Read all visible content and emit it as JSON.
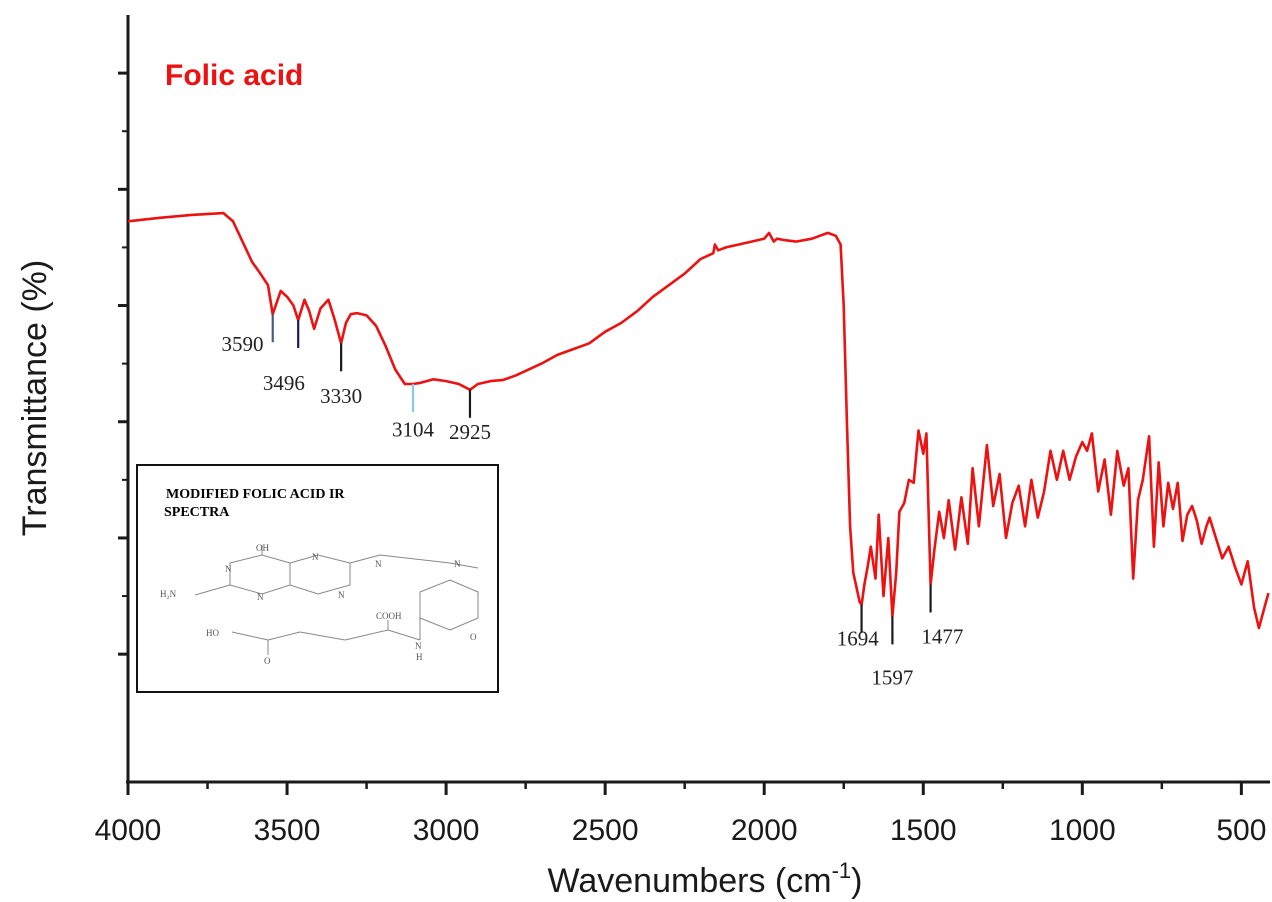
{
  "chart_data": {
    "type": "line",
    "title": "Folic acid",
    "xlabel": "Wavenumbers",
    "xlabel_unit": "(cm",
    "xlabel_unit_exp": "-1",
    "xlabel_unit_close": ")",
    "ylabel": "Transmittance (%)",
    "xlim": [
      4000,
      410
    ],
    "x_reversed": true,
    "x_ticks": [
      "4000",
      "3500",
      "3000",
      "2500",
      "2000",
      "1500",
      "1000",
      "500"
    ],
    "x_tick_values": [
      4000,
      3500,
      3000,
      2500,
      2000,
      1500,
      1000,
      500
    ],
    "y_tick_labels_shown": false,
    "grid": false,
    "colors": {
      "series": "#ee1111",
      "axis": "#1a1a1a"
    },
    "series": [
      {
        "x": [
          4000,
          3900,
          3800,
          3700,
          3670,
          3640,
          3610,
          3590,
          3560,
          3545,
          3520,
          3500,
          3480,
          3465,
          3445,
          3430,
          3415,
          3395,
          3370,
          3350,
          3330,
          3315,
          3300,
          3280,
          3250,
          3220,
          3190,
          3160,
          3130,
          3104,
          3080,
          3040,
          3000,
          2960,
          2925,
          2900,
          2860,
          2820,
          2780,
          2740,
          2700,
          2650,
          2600,
          2550,
          2500,
          2450,
          2400,
          2350,
          2300,
          2250,
          2200,
          2160,
          2155,
          2145,
          2120,
          2080,
          2040,
          2000,
          1985,
          1970,
          1960,
          1940,
          1900,
          1850,
          1800,
          1775,
          1760,
          1750,
          1740,
          1730,
          1720,
          1710,
          1700,
          1694,
          1685,
          1675,
          1665,
          1650,
          1640,
          1625,
          1610,
          1597,
          1585,
          1575,
          1560,
          1545,
          1530,
          1515,
          1500,
          1490,
          1477,
          1465,
          1450,
          1435,
          1420,
          1400,
          1380,
          1360,
          1345,
          1325,
          1300,
          1280,
          1260,
          1240,
          1220,
          1200,
          1180,
          1160,
          1140,
          1120,
          1100,
          1080,
          1060,
          1040,
          1020,
          1000,
          985,
          970,
          950,
          930,
          910,
          890,
          870,
          855,
          840,
          825,
          810,
          790,
          775,
          760,
          745,
          730,
          715,
          700,
          685,
          670,
          655,
          640,
          625,
          610,
          600,
          580,
          560,
          540,
          520,
          500,
          480,
          460,
          445,
          430,
          415
        ],
        "y": [
          74.5,
          75.1,
          75.6,
          75.9,
          74.5,
          71.0,
          67.5,
          66.0,
          63.5,
          58.5,
          62.5,
          61.5,
          60.0,
          57.5,
          61.0,
          59.0,
          56.0,
          59.5,
          61.0,
          57.5,
          53.5,
          57.0,
          58.5,
          58.7,
          58.3,
          56.5,
          53.0,
          49.0,
          46.5,
          46.5,
          46.7,
          47.3,
          47.0,
          46.5,
          45.5,
          46.5,
          47.0,
          47.2,
          48.0,
          49.0,
          50.0,
          51.5,
          52.5,
          53.5,
          55.5,
          57.0,
          59.0,
          61.5,
          63.5,
          65.5,
          68.0,
          69.0,
          70.5,
          69.5,
          70.0,
          70.5,
          71.0,
          71.5,
          72.5,
          71.0,
          71.5,
          71.3,
          71.0,
          71.5,
          72.5,
          72.0,
          70.5,
          60.0,
          40.0,
          22.0,
          14.0,
          11.5,
          9.0,
          8.5,
          12.0,
          15.0,
          18.5,
          13.0,
          24.0,
          10.0,
          20.0,
          6.5,
          14.0,
          24.5,
          26.0,
          30.0,
          29.5,
          38.5,
          34.5,
          38.0,
          12.0,
          18.0,
          24.5,
          20.0,
          26.5,
          18.0,
          27.0,
          19.0,
          32.0,
          22.0,
          36.0,
          25.5,
          31.0,
          20.0,
          26.0,
          29.0,
          22.0,
          30.0,
          23.5,
          28.0,
          35.0,
          30.0,
          35.0,
          30.0,
          34.0,
          36.5,
          35.0,
          38.0,
          28.0,
          33.5,
          24.0,
          35.0,
          29.0,
          32.0,
          13.0,
          26.5,
          30.0,
          37.5,
          18.5,
          33.0,
          22.0,
          29.5,
          25.0,
          29.5,
          19.5,
          24.0,
          25.5,
          23.0,
          19.0,
          22.0,
          23.5,
          20.0,
          16.5,
          18.5,
          15.0,
          12.0,
          16.0,
          8.0,
          4.5,
          7.5,
          10.5
        ]
      }
    ],
    "annotations": [
      {
        "label": "3590",
        "x": 3545,
        "x1": 3590,
        "y": 58.5,
        "color": "#4a5a7a",
        "text_x": 3640,
        "text_y": 52.2
      },
      {
        "label": "3496",
        "x": 3465,
        "x1": 3496,
        "y": 57.5,
        "color": "#1a1a60",
        "text_x": 3510,
        "text_y": 45.5
      },
      {
        "label": "3330",
        "x": 3330,
        "x1": 3330,
        "y": 53.5,
        "color": "#1a1a1a",
        "text_x": 3330,
        "text_y": 43.2
      },
      {
        "label": "3104",
        "x": 3104,
        "x1": 3104,
        "y": 46.5,
        "color": "#88c8e8",
        "text_x": 3104,
        "text_y": 37.5
      },
      {
        "label": "2925",
        "x": 2925,
        "x1": 2925,
        "y": 45.5,
        "color": "#1a1a1a",
        "text_x": 2925,
        "text_y": 37.0
      },
      {
        "label": "1694",
        "x": 1694,
        "x1": 1694,
        "y": 8.5,
        "color": "#1a1a1a",
        "text_x": 1706,
        "text_y": 1.5
      },
      {
        "label": "1597",
        "x": 1597,
        "x1": 1597,
        "y": 6.5,
        "color": "#1a1a1a",
        "text_x": 1597,
        "text_y": -5.2
      },
      {
        "label": "1477",
        "x": 1477,
        "x1": 1477,
        "y": 12.0,
        "color": "#1a1a1a",
        "text_x": 1440,
        "text_y": 1.8
      }
    ]
  },
  "inset": {
    "title_line1": "MODIFIED FOLIC ACID IR",
    "title_line2": "SPECTRA",
    "mol_oh": "OH",
    "mol_nh2": "H₂N",
    "mol_n1": "N",
    "mol_n2": "N",
    "mol_n3": "N",
    "mol_n4": "N",
    "mol_n5": "N",
    "mol_n6": "N",
    "mol_nh": "N",
    "mol_h": "H",
    "mol_cooh": "COOH",
    "mol_ho": "HO",
    "mol_o1": "O",
    "mol_o2": "O"
  }
}
